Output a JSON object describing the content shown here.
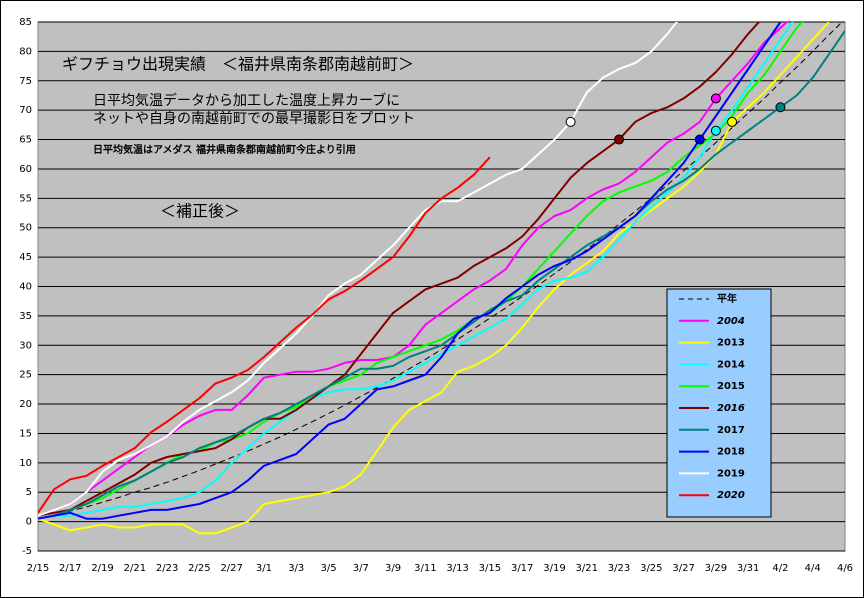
{
  "chart_data": {
    "type": "line",
    "title": "ギフチョウ出現実績　＜福井県南条郡南越前町＞",
    "subtitle": [
      "日平均気温データから加工した温度上昇カーブに",
      "ネットや自身の南越前町での最早撮影日をプロット"
    ],
    "note": "日平均気温はアメダス 福井県南条郡南越前町今庄より引用",
    "label": "＜補正後＞",
    "categories": [
      "2/15",
      null,
      "2/17",
      null,
      "2/19",
      null,
      "2/21",
      null,
      "2/23",
      null,
      "2/25",
      null,
      "2/27",
      null,
      "3/1",
      null,
      "3/3",
      null,
      "3/5",
      null,
      "3/7",
      null,
      "3/9",
      null,
      "3/11",
      null,
      "3/13",
      null,
      "3/15",
      null,
      "3/17",
      null,
      "3/19",
      null,
      "3/21",
      null,
      "3/23",
      null,
      "3/25",
      null,
      "3/27",
      null,
      "3/29",
      null,
      "3/31",
      null,
      "4/2",
      null,
      "4/4",
      null,
      "4/6"
    ],
    "ylim": [
      -5,
      85
    ],
    "yticks": [
      -5,
      0,
      5,
      10,
      15,
      20,
      25,
      30,
      35,
      40,
      45,
      50,
      55,
      60,
      65,
      70,
      75,
      80,
      85
    ],
    "grid": true,
    "legend": "right",
    "series": [
      {
        "name": "平年",
        "color": "#000000",
        "dash": true,
        "values": [
          0.5,
          1.1,
          1.8,
          2.5,
          3.3,
          4.1,
          5,
          5.8,
          6.7,
          7.7,
          8.7,
          9.8,
          10.9,
          12,
          13.2,
          14.4,
          15.7,
          17,
          18.4,
          19.8,
          21.3,
          22.8,
          24.4,
          26,
          27.6,
          29.3,
          31,
          32.8,
          34.6,
          36.4,
          38.3,
          40.2,
          42.2,
          44.2,
          46.3,
          48.4,
          50.6,
          52.8,
          55,
          57.3,
          59.7,
          62,
          64.5,
          67,
          69.5,
          72,
          74.7,
          77.3,
          80,
          82.8,
          85.5
        ]
      },
      {
        "name": "2004",
        "color": "#ff00ff",
        "italic": true,
        "marker": 42,
        "values": [
          1,
          2,
          3,
          5,
          7,
          9,
          11,
          13,
          14.5,
          16.5,
          18,
          19,
          19,
          21.5,
          24.5,
          25,
          25.5,
          25.5,
          26,
          27,
          27.5,
          27.5,
          28,
          30,
          33.5,
          35.5,
          37.5,
          39.5,
          41,
          43,
          47,
          50,
          52,
          53,
          55,
          56.5,
          57.5,
          59.5,
          62,
          64.5,
          66,
          68,
          72,
          75,
          78,
          81.5,
          84,
          86.5,
          null,
          null,
          null
        ]
      },
      {
        "name": "2013",
        "color": "#ffff00",
        "marker": 43,
        "values": [
          0.5,
          -0.5,
          -1.5,
          -1,
          -0.5,
          -1,
          -1,
          -0.5,
          -0.5,
          -0.5,
          -2,
          -2,
          -1,
          0,
          3,
          3.5,
          4,
          4.5,
          5,
          6,
          8,
          12,
          16,
          19,
          20.5,
          22,
          25.5,
          26.5,
          28,
          30,
          33,
          36.5,
          39.5,
          42,
          44,
          46,
          49,
          51,
          53,
          55,
          57,
          59.5,
          62.5,
          68,
          70.5,
          73,
          76,
          79,
          82,
          85,
          null
        ]
      },
      {
        "name": "2014",
        "color": "#00ffff",
        "marker": 42,
        "values": [
          0.5,
          1,
          1,
          1.5,
          2,
          2.5,
          2.5,
          3,
          3.5,
          4,
          5,
          7,
          10,
          12.5,
          15,
          17,
          19,
          21,
          22,
          22.5,
          22.5,
          23,
          24,
          25.5,
          27,
          28.5,
          30,
          31.5,
          33,
          34.5,
          37,
          39.5,
          41,
          41.5,
          42.5,
          45,
          48,
          51,
          53.5,
          56,
          58.5,
          62,
          66.5,
          70,
          74,
          78,
          82,
          86,
          null,
          null,
          null
        ]
      },
      {
        "name": "2015",
        "color": "#00ff00",
        "values": [
          1,
          1.5,
          2,
          3,
          4,
          5.5,
          7,
          8.5,
          10,
          11.5,
          12,
          13.5,
          14,
          15,
          17,
          18.5,
          19.5,
          21.5,
          23,
          24,
          25,
          27,
          28,
          29,
          30,
          31,
          32.5,
          34.5,
          35.5,
          37.5,
          40,
          43,
          46,
          49,
          52,
          54.5,
          56,
          57,
          58,
          59.5,
          62,
          64,
          66,
          69,
          73,
          76,
          80,
          84,
          87,
          null,
          null
        ]
      },
      {
        "name": "2016",
        "color": "#800000",
        "italic": true,
        "marker": 36,
        "values": [
          1,
          1.5,
          2,
          3.5,
          5,
          6.5,
          8,
          10,
          11,
          11.5,
          12,
          12.5,
          14,
          16,
          17.5,
          17.5,
          19,
          21,
          23,
          25,
          28.5,
          32,
          35.5,
          37.5,
          39.5,
          40.5,
          41.5,
          43.5,
          45,
          46.5,
          48.5,
          51.5,
          55,
          58.5,
          61,
          63,
          65,
          68,
          69.5,
          70.5,
          72,
          74,
          76.5,
          79.5,
          83,
          86,
          null,
          null,
          null,
          null,
          null
        ]
      },
      {
        "name": "2017",
        "color": "#008080",
        "marker": 46,
        "values": [
          0.5,
          1,
          2,
          3,
          4.5,
          6,
          7,
          8.5,
          10,
          11,
          12.5,
          13.5,
          14.5,
          16,
          17.5,
          18.5,
          20,
          21.5,
          23,
          24.5,
          26,
          26,
          26.5,
          28,
          29,
          30,
          32,
          34,
          36,
          37.5,
          38.5,
          41,
          43,
          45,
          47,
          48.5,
          50,
          52,
          54.5,
          56.5,
          58,
          60,
          62.5,
          64.5,
          66.5,
          68.5,
          70.5,
          72.5,
          75.5,
          79.5,
          83.5
        ]
      },
      {
        "name": "2018",
        "color": "#0000ff",
        "marker": 41,
        "values": [
          0.5,
          1,
          1.5,
          0.5,
          0.5,
          1,
          1.5,
          2,
          2,
          2.5,
          3,
          4,
          5,
          7,
          9.5,
          10.5,
          11.5,
          14,
          16.5,
          17.5,
          20,
          22.5,
          23,
          24,
          25,
          28,
          32,
          34.5,
          35.5,
          38,
          40,
          42,
          43.5,
          44.5,
          46,
          48,
          50,
          52,
          55,
          58,
          61,
          65,
          69,
          73,
          77,
          81,
          85,
          null,
          null,
          null,
          null
        ]
      },
      {
        "name": "2019",
        "color": "#ffffff",
        "marker": 33,
        "values": [
          1,
          2,
          3,
          5,
          8.5,
          10.5,
          11.5,
          13,
          14.5,
          17,
          19,
          20.5,
          22,
          24,
          27,
          29.5,
          32,
          35,
          38.5,
          40.5,
          42,
          44.5,
          47,
          50,
          53,
          54.5,
          54.5,
          56,
          57.5,
          59,
          60,
          62.5,
          65,
          68,
          73,
          75.5,
          77,
          78,
          80,
          83,
          86.5,
          null,
          null,
          null,
          null,
          null,
          null,
          null,
          null,
          null,
          null
        ]
      },
      {
        "name": "2020",
        "color": "#ff0000",
        "italic": true,
        "values": [
          1.5,
          5.5,
          7.2,
          7.8,
          9.5,
          11,
          12.5,
          15.2,
          17,
          19,
          21,
          23.5,
          24.5,
          25.8,
          28,
          30.5,
          33,
          35.2,
          37.8,
          39.2,
          41,
          43,
          45,
          48.5,
          52.5,
          55,
          56.8,
          59,
          62,
          null,
          null,
          null,
          null,
          null,
          null,
          null,
          null,
          null,
          null,
          null,
          null,
          null,
          null,
          null,
          null,
          null,
          null,
          null,
          null,
          null,
          null
        ]
      }
    ]
  }
}
